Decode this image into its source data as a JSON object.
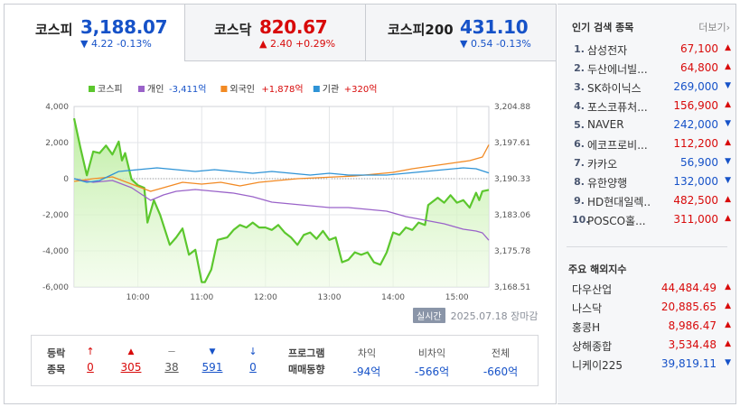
{
  "tabs": [
    {
      "name": "코스피",
      "value": "3,188.07",
      "change": "▼ 4.22 -0.13%",
      "dir": "down",
      "active": true
    },
    {
      "name": "코스닥",
      "value": "820.67",
      "change": "▲ 2.40 +0.29%",
      "dir": "up",
      "active": false
    },
    {
      "name": "코스피200",
      "value": "431.10",
      "change": "▼ 0.54 -0.13%",
      "dir": "down",
      "active": false
    }
  ],
  "legend": [
    {
      "name": "코스피",
      "value": "",
      "color": "#5cc72e"
    },
    {
      "name": "개인",
      "value": "-3,411억",
      "color": "#9a63c9",
      "dir": "down"
    },
    {
      "name": "외국인",
      "value": "+1,878억",
      "color": "#f28a24",
      "dir": "up"
    },
    {
      "name": "기관",
      "value": "+320억",
      "color": "#2e93d6",
      "dir": "up"
    }
  ],
  "chart_data": {
    "type": "line",
    "left_axis_ticks": [
      "4,000",
      "2,000",
      "0",
      "-2,000",
      "-4,000",
      "-6,000"
    ],
    "right_axis_ticks": [
      "3,204.88",
      "3,197.61",
      "3,190.33",
      "3,183.06",
      "3,175.78",
      "3,168.51"
    ],
    "x_ticks": [
      "10:00",
      "11:00",
      "12:00",
      "13:00",
      "14:00",
      "15:00"
    ],
    "left_ylim": [
      -6000,
      4000
    ],
    "right_ylim": [
      3168.51,
      3204.88
    ],
    "x_range_hours": [
      9.0,
      15.5
    ],
    "series": [
      {
        "name": "코스피",
        "axis": "right",
        "color": "#5cc72e",
        "points": [
          [
            9.0,
            3202.5
          ],
          [
            9.1,
            3196.5
          ],
          [
            9.2,
            3191.0
          ],
          [
            9.3,
            3195.8
          ],
          [
            9.4,
            3195.5
          ],
          [
            9.5,
            3197.0
          ],
          [
            9.6,
            3195.2
          ],
          [
            9.7,
            3197.8
          ],
          [
            9.75,
            3194.0
          ],
          [
            9.8,
            3195.5
          ],
          [
            9.9,
            3190.2
          ],
          [
            10.0,
            3189.0
          ],
          [
            10.1,
            3188.5
          ],
          [
            10.15,
            3181.5
          ],
          [
            10.25,
            3186.0
          ],
          [
            10.35,
            3183.0
          ],
          [
            10.5,
            3177.0
          ],
          [
            10.6,
            3178.5
          ],
          [
            10.7,
            3180.3
          ],
          [
            10.8,
            3175.0
          ],
          [
            10.9,
            3176.0
          ],
          [
            11.0,
            3169.5
          ],
          [
            11.05,
            3169.5
          ],
          [
            11.15,
            3172.0
          ],
          [
            11.25,
            3178.0
          ],
          [
            11.4,
            3178.5
          ],
          [
            11.5,
            3180.0
          ],
          [
            11.6,
            3181.0
          ],
          [
            11.7,
            3180.5
          ],
          [
            11.8,
            3181.5
          ],
          [
            11.9,
            3180.5
          ],
          [
            12.0,
            3180.5
          ],
          [
            12.1,
            3180.0
          ],
          [
            12.2,
            3181.0
          ],
          [
            12.3,
            3179.5
          ],
          [
            12.4,
            3178.5
          ],
          [
            12.5,
            3177.0
          ],
          [
            12.6,
            3179.0
          ],
          [
            12.7,
            3179.5
          ],
          [
            12.8,
            3178.2
          ],
          [
            12.9,
            3179.8
          ],
          [
            13.0,
            3178.0
          ],
          [
            13.1,
            3178.5
          ],
          [
            13.2,
            3173.5
          ],
          [
            13.3,
            3174.0
          ],
          [
            13.4,
            3175.5
          ],
          [
            13.5,
            3175.0
          ],
          [
            13.6,
            3175.5
          ],
          [
            13.7,
            3173.5
          ],
          [
            13.8,
            3173.0
          ],
          [
            13.9,
            3175.5
          ],
          [
            14.0,
            3179.5
          ],
          [
            14.1,
            3179.0
          ],
          [
            14.2,
            3180.5
          ],
          [
            14.3,
            3180.0
          ],
          [
            14.4,
            3181.5
          ],
          [
            14.5,
            3181.0
          ],
          [
            14.55,
            3185.0
          ],
          [
            14.7,
            3186.5
          ],
          [
            14.8,
            3185.5
          ],
          [
            14.9,
            3187.0
          ],
          [
            15.0,
            3185.5
          ],
          [
            15.1,
            3186.0
          ],
          [
            15.2,
            3184.5
          ],
          [
            15.3,
            3187.5
          ],
          [
            15.35,
            3186.0
          ],
          [
            15.4,
            3187.8
          ],
          [
            15.5,
            3188.07
          ]
        ]
      },
      {
        "name": "개인",
        "axis": "left",
        "color": "#9a63c9",
        "points": [
          [
            9.0,
            0
          ],
          [
            9.3,
            -200
          ],
          [
            9.6,
            -100
          ],
          [
            9.9,
            -500
          ],
          [
            10.2,
            -1200
          ],
          [
            10.4,
            -900
          ],
          [
            10.6,
            -700
          ],
          [
            10.9,
            -600
          ],
          [
            11.2,
            -700
          ],
          [
            11.5,
            -800
          ],
          [
            11.8,
            -1000
          ],
          [
            12.1,
            -1300
          ],
          [
            12.4,
            -1400
          ],
          [
            12.7,
            -1500
          ],
          [
            13.0,
            -1600
          ],
          [
            13.3,
            -1600
          ],
          [
            13.6,
            -1700
          ],
          [
            13.9,
            -1800
          ],
          [
            14.2,
            -2100
          ],
          [
            14.5,
            -2300
          ],
          [
            14.8,
            -2500
          ],
          [
            15.1,
            -2800
          ],
          [
            15.3,
            -2900
          ],
          [
            15.4,
            -3000
          ],
          [
            15.5,
            -3411
          ]
        ]
      },
      {
        "name": "외국인",
        "axis": "left",
        "color": "#f28a24",
        "points": [
          [
            9.0,
            -150
          ],
          [
            9.3,
            0
          ],
          [
            9.6,
            100
          ],
          [
            9.9,
            -300
          ],
          [
            10.2,
            -700
          ],
          [
            10.4,
            -500
          ],
          [
            10.7,
            -200
          ],
          [
            11.0,
            -300
          ],
          [
            11.3,
            -200
          ],
          [
            11.6,
            -400
          ],
          [
            11.9,
            -200
          ],
          [
            12.2,
            -100
          ],
          [
            12.5,
            0
          ],
          [
            12.8,
            50
          ],
          [
            13.1,
            100
          ],
          [
            13.4,
            150
          ],
          [
            13.7,
            250
          ],
          [
            14.0,
            350
          ],
          [
            14.3,
            550
          ],
          [
            14.6,
            700
          ],
          [
            14.9,
            850
          ],
          [
            15.2,
            1000
          ],
          [
            15.4,
            1200
          ],
          [
            15.5,
            1878
          ]
        ]
      },
      {
        "name": "기관",
        "axis": "left",
        "color": "#2e93d6",
        "points": [
          [
            9.0,
            0
          ],
          [
            9.2,
            -200
          ],
          [
            9.4,
            -100
          ],
          [
            9.7,
            400
          ],
          [
            10.0,
            500
          ],
          [
            10.3,
            600
          ],
          [
            10.6,
            500
          ],
          [
            10.9,
            400
          ],
          [
            11.2,
            500
          ],
          [
            11.5,
            400
          ],
          [
            11.8,
            300
          ],
          [
            12.1,
            400
          ],
          [
            12.4,
            300
          ],
          [
            12.7,
            200
          ],
          [
            13.0,
            300
          ],
          [
            13.3,
            200
          ],
          [
            13.6,
            200
          ],
          [
            13.9,
            200
          ],
          [
            14.2,
            300
          ],
          [
            14.5,
            400
          ],
          [
            14.8,
            500
          ],
          [
            15.1,
            600
          ],
          [
            15.3,
            550
          ],
          [
            15.5,
            320
          ]
        ]
      }
    ]
  },
  "timestamp": {
    "badge": "실시간",
    "text": "2025.07.18 장마감"
  },
  "stats": {
    "label_line1": "등락",
    "label_line2": "종목",
    "items": [
      {
        "icon": "↑",
        "value": "0",
        "dir": "up"
      },
      {
        "icon": "▲",
        "value": "305",
        "dir": "up"
      },
      {
        "icon": "ㅡ",
        "value": "38",
        "dir": "flat"
      },
      {
        "icon": "▼",
        "value": "591",
        "dir": "down"
      },
      {
        "icon": "↓",
        "value": "0",
        "dir": "down"
      }
    ],
    "program_line1": "프로그램",
    "program_line2": "매매동향",
    "program": [
      {
        "label": "차익",
        "value": "-94억"
      },
      {
        "label": "비차익",
        "value": "-566억"
      },
      {
        "label": "전체",
        "value": "-660억"
      }
    ]
  },
  "popular": {
    "title": "인기 검색 종목",
    "more": "더보기",
    "items": [
      {
        "rank": "1.",
        "name": "삼성전자",
        "price": "67,100",
        "dir": "up"
      },
      {
        "rank": "2.",
        "name": "두산에너빌...",
        "price": "64,800",
        "dir": "up"
      },
      {
        "rank": "3.",
        "name": "SK하이닉스",
        "price": "269,000",
        "dir": "down"
      },
      {
        "rank": "4.",
        "name": "포스코퓨처...",
        "price": "156,900",
        "dir": "up"
      },
      {
        "rank": "5.",
        "name": "NAVER",
        "price": "242,000",
        "dir": "down"
      },
      {
        "rank": "6.",
        "name": "에코프로비...",
        "price": "112,200",
        "dir": "up"
      },
      {
        "rank": "7.",
        "name": "카카오",
        "price": "56,900",
        "dir": "down"
      },
      {
        "rank": "8.",
        "name": "유한양행",
        "price": "132,000",
        "dir": "down"
      },
      {
        "rank": "9.",
        "name": "HD현대일렉...",
        "price": "482,500",
        "dir": "up"
      },
      {
        "rank": "10.",
        "name": "POSCO홀...",
        "price": "311,000",
        "dir": "up"
      }
    ]
  },
  "overseas": {
    "title": "주요 해외지수",
    "items": [
      {
        "name": "다우산업",
        "value": "44,484.49",
        "dir": "up"
      },
      {
        "name": "나스닥",
        "value": "20,885.65",
        "dir": "up"
      },
      {
        "name": "홍콩H",
        "value": "8,986.47",
        "dir": "up"
      },
      {
        "name": "상해종합",
        "value": "3,534.48",
        "dir": "up"
      },
      {
        "name": "니케이225",
        "value": "39,819.11",
        "dir": "down"
      }
    ]
  }
}
